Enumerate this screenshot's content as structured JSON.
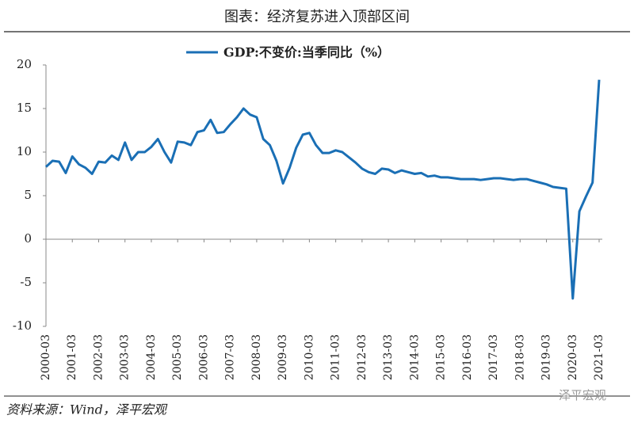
{
  "chart_data": {
    "type": "line",
    "title": "图表：经济复苏进入顶部区间",
    "source": "资料来源：Wind，泽平宏观",
    "watermark": "泽平宏观",
    "categories": [
      "2000-03",
      null,
      null,
      null,
      "2001-03",
      null,
      null,
      null,
      "2002-03",
      null,
      null,
      null,
      "2003-03",
      null,
      null,
      null,
      "2004-03",
      null,
      null,
      null,
      "2005-03",
      null,
      null,
      null,
      "2006-03",
      null,
      null,
      null,
      "2007-03",
      null,
      null,
      null,
      "2008-03",
      null,
      null,
      null,
      "2009-03",
      null,
      null,
      null,
      "2010-03",
      null,
      null,
      null,
      "2011-03",
      null,
      null,
      null,
      "2012-03",
      null,
      null,
      null,
      "2013-03",
      null,
      null,
      null,
      "2014-03",
      null,
      null,
      null,
      "2015-03",
      null,
      null,
      null,
      "2016-03",
      null,
      null,
      null,
      "2017-03",
      null,
      null,
      null,
      "2018-03",
      null,
      null,
      null,
      "2019-03",
      null,
      null,
      null,
      "2020-03",
      null,
      null,
      null,
      "2021-03"
    ],
    "series": [
      {
        "name": "GDP:不变价:当季同比（%）",
        "color": "#1a6fb5",
        "values": [
          8.3,
          9.0,
          8.9,
          7.6,
          9.5,
          8.6,
          8.2,
          7.5,
          8.9,
          8.8,
          9.6,
          9.1,
          11.1,
          9.1,
          10.0,
          10.0,
          10.6,
          11.5,
          10.0,
          8.8,
          11.2,
          11.1,
          10.8,
          12.3,
          12.5,
          13.7,
          12.2,
          12.3,
          13.2,
          14.0,
          15.0,
          14.3,
          14.0,
          11.5,
          10.8,
          9.0,
          6.4,
          8.2,
          10.5,
          12.0,
          12.2,
          10.8,
          9.9,
          9.9,
          10.2,
          10.0,
          9.4,
          8.8,
          8.1,
          7.7,
          7.5,
          8.1,
          8.0,
          7.6,
          7.9,
          7.7,
          7.5,
          7.6,
          7.2,
          7.3,
          7.1,
          7.1,
          7.0,
          6.9,
          6.9,
          6.9,
          6.8,
          6.9,
          7.0,
          7.0,
          6.9,
          6.8,
          6.9,
          6.9,
          6.7,
          6.5,
          6.3,
          6.0,
          5.9,
          5.8,
          -6.8,
          3.2,
          4.9,
          6.5,
          18.3
        ]
      }
    ],
    "ylim": [
      -10,
      20
    ],
    "yticks": [
      -10,
      -5,
      0,
      5,
      10,
      15,
      20
    ],
    "legend": "top"
  }
}
